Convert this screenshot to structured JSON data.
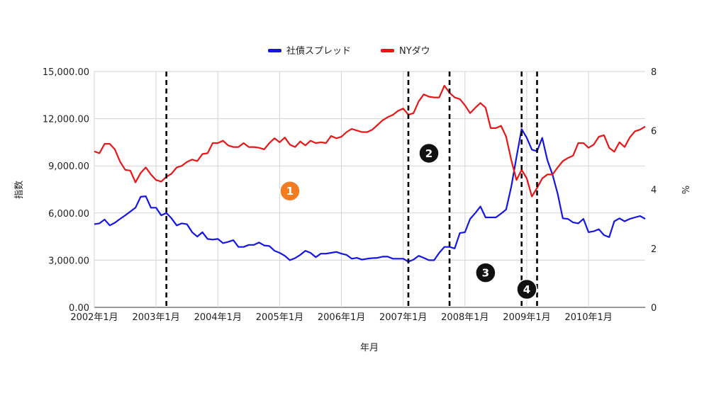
{
  "chart_data": {
    "type": "line",
    "title": "",
    "xlabel": "年月",
    "ylabel_left": "指数",
    "ylabel_right": "%",
    "x_range": [
      "2002-01",
      "2010-12"
    ],
    "x_ticks": [
      "2002年1月",
      "2003年1月",
      "2004年1月",
      "2005年1月",
      "2006年1月",
      "2007年1月",
      "2008年1月",
      "2009年1月",
      "2010年1月"
    ],
    "y_left_range": [
      0,
      15000
    ],
    "y_left_ticks": [
      "0.00",
      "3,000.00",
      "6,000.00",
      "9,000.00",
      "12,000.00",
      "15,000.00"
    ],
    "y_right_range": [
      0,
      8
    ],
    "y_right_ticks": [
      "0",
      "2",
      "4",
      "6",
      "8"
    ],
    "grid": true,
    "legend_position": "top-center",
    "series": [
      {
        "name": "社債スプレッド",
        "axis": "right",
        "color": "#1515e6",
        "x": [
          "2002-01",
          "2002-02",
          "2002-03",
          "2002-04",
          "2002-05",
          "2002-06",
          "2002-07",
          "2002-08",
          "2002-09",
          "2002-10",
          "2002-11",
          "2002-12",
          "2003-01",
          "2003-02",
          "2003-03",
          "2003-04",
          "2003-05",
          "2003-06",
          "2003-07",
          "2003-08",
          "2003-09",
          "2003-10",
          "2003-11",
          "2003-12",
          "2004-01",
          "2004-02",
          "2004-03",
          "2004-04",
          "2004-05",
          "2004-06",
          "2004-07",
          "2004-08",
          "2004-09",
          "2004-10",
          "2004-11",
          "2004-12",
          "2005-01",
          "2005-02",
          "2005-03",
          "2005-04",
          "2005-05",
          "2005-06",
          "2005-07",
          "2005-08",
          "2005-09",
          "2005-10",
          "2005-11",
          "2005-12",
          "2006-01",
          "2006-02",
          "2006-03",
          "2006-04",
          "2006-05",
          "2006-06",
          "2006-07",
          "2006-08",
          "2006-09",
          "2006-10",
          "2006-11",
          "2006-12",
          "2007-01",
          "2007-02",
          "2007-03",
          "2007-04",
          "2007-05",
          "2007-06",
          "2007-07",
          "2007-08",
          "2007-09",
          "2007-10",
          "2007-11",
          "2007-12",
          "2008-01",
          "2008-02",
          "2008-03",
          "2008-04",
          "2008-05",
          "2008-06",
          "2008-07",
          "2008-08",
          "2008-09",
          "2008-10",
          "2008-11",
          "2008-12",
          "2009-01",
          "2009-02",
          "2009-03",
          "2009-04",
          "2009-05",
          "2009-06",
          "2009-07",
          "2009-08",
          "2009-09",
          "2009-10",
          "2009-11",
          "2009-12",
          "2010-01",
          "2010-02",
          "2010-03",
          "2010-04",
          "2010-05",
          "2010-06",
          "2010-07",
          "2010-08",
          "2010-09",
          "2010-10",
          "2010-11",
          "2010-12"
        ],
        "values": [
          2.82,
          2.85,
          2.98,
          2.78,
          2.87,
          3.0,
          3.12,
          3.25,
          3.38,
          3.75,
          3.77,
          3.38,
          3.38,
          3.12,
          3.2,
          3.02,
          2.78,
          2.85,
          2.82,
          2.55,
          2.4,
          2.55,
          2.32,
          2.3,
          2.32,
          2.18,
          2.22,
          2.28,
          2.05,
          2.05,
          2.12,
          2.12,
          2.2,
          2.1,
          2.08,
          1.92,
          1.85,
          1.75,
          1.6,
          1.67,
          1.78,
          1.92,
          1.85,
          1.7,
          1.82,
          1.82,
          1.85,
          1.88,
          1.82,
          1.78,
          1.65,
          1.68,
          1.62,
          1.65,
          1.67,
          1.68,
          1.72,
          1.72,
          1.65,
          1.65,
          1.65,
          1.55,
          1.62,
          1.75,
          1.68,
          1.6,
          1.6,
          1.85,
          2.05,
          2.05,
          2.0,
          2.52,
          2.55,
          3.0,
          3.2,
          3.42,
          3.05,
          3.05,
          3.05,
          3.18,
          3.32,
          4.1,
          5.1,
          6.05,
          5.75,
          5.35,
          5.3,
          5.75,
          5.0,
          4.5,
          3.85,
          3.02,
          3.0,
          2.88,
          2.85,
          3.0,
          2.55,
          2.58,
          2.65,
          2.45,
          2.38,
          2.92,
          3.02,
          2.92,
          3.0,
          3.05,
          3.1,
          3.0
        ]
      },
      {
        "name": "NYダウ",
        "axis": "left",
        "color": "#e81616",
        "x": [
          "2002-01",
          "2002-02",
          "2002-03",
          "2002-04",
          "2002-05",
          "2002-06",
          "2002-07",
          "2002-08",
          "2002-09",
          "2002-10",
          "2002-11",
          "2002-12",
          "2003-01",
          "2003-02",
          "2003-03",
          "2003-04",
          "2003-05",
          "2003-06",
          "2003-07",
          "2003-08",
          "2003-09",
          "2003-10",
          "2003-11",
          "2003-12",
          "2004-01",
          "2004-02",
          "2004-03",
          "2004-04",
          "2004-05",
          "2004-06",
          "2004-07",
          "2004-08",
          "2004-09",
          "2004-10",
          "2004-11",
          "2004-12",
          "2005-01",
          "2005-02",
          "2005-03",
          "2005-04",
          "2005-05",
          "2005-06",
          "2005-07",
          "2005-08",
          "2005-09",
          "2005-10",
          "2005-11",
          "2005-12",
          "2006-01",
          "2006-02",
          "2006-03",
          "2006-04",
          "2006-05",
          "2006-06",
          "2006-07",
          "2006-08",
          "2006-09",
          "2006-10",
          "2006-11",
          "2006-12",
          "2007-01",
          "2007-02",
          "2007-03",
          "2007-04",
          "2007-05",
          "2007-06",
          "2007-07",
          "2007-08",
          "2007-09",
          "2007-10",
          "2007-11",
          "2007-12",
          "2008-01",
          "2008-02",
          "2008-03",
          "2008-04",
          "2008-05",
          "2008-06",
          "2008-07",
          "2008-08",
          "2008-09",
          "2008-10",
          "2008-11",
          "2008-12",
          "2009-01",
          "2009-02",
          "2009-03",
          "2009-04",
          "2009-05",
          "2009-06",
          "2009-07",
          "2009-08",
          "2009-09",
          "2009-10",
          "2009-11",
          "2009-12",
          "2010-01",
          "2010-02",
          "2010-03",
          "2010-04",
          "2010-05",
          "2010-06",
          "2010-07",
          "2010-08",
          "2010-09",
          "2010-10",
          "2010-11",
          "2010-12"
        ],
        "values": [
          9920,
          9800,
          10400,
          10400,
          10050,
          9270,
          8750,
          8700,
          7950,
          8550,
          8900,
          8450,
          8100,
          8000,
          8300,
          8500,
          8900,
          9000,
          9250,
          9400,
          9300,
          9750,
          9800,
          10450,
          10450,
          10600,
          10300,
          10200,
          10200,
          10450,
          10200,
          10200,
          10150,
          10050,
          10450,
          10750,
          10500,
          10800,
          10350,
          10200,
          10550,
          10300,
          10600,
          10450,
          10500,
          10450,
          10900,
          10750,
          10850,
          11150,
          11350,
          11250,
          11150,
          11150,
          11300,
          11600,
          11900,
          12100,
          12250,
          12500,
          12650,
          12250,
          12350,
          13100,
          13550,
          13400,
          13350,
          13350,
          14100,
          13650,
          13350,
          13250,
          12850,
          12350,
          12700,
          13000,
          12700,
          11400,
          11400,
          11550,
          10850,
          9350,
          8100,
          8750,
          8200,
          7050,
          7600,
          8200,
          8450,
          8450,
          8900,
          9300,
          9500,
          9650,
          10450,
          10450,
          10150,
          10350,
          10850,
          10950,
          10150,
          9900,
          10500,
          10200,
          10800,
          11200,
          11300,
          11500
        ]
      }
    ],
    "annotations": {
      "vertical_lines": [
        "2003-03",
        "2007-02",
        "2007-10",
        "2008-12",
        "2009-03"
      ],
      "markers": [
        {
          "label": "1",
          "style": "orange",
          "x": "2005-03",
          "y_left": 7400
        },
        {
          "label": "2",
          "style": "black",
          "x": "2007-06",
          "y_left": 9800
        },
        {
          "label": "3",
          "style": "black",
          "x": "2008-05",
          "y_left": 2200
        },
        {
          "label": "4",
          "style": "black",
          "x": "2009-01",
          "y_left": 1150
        }
      ]
    }
  }
}
